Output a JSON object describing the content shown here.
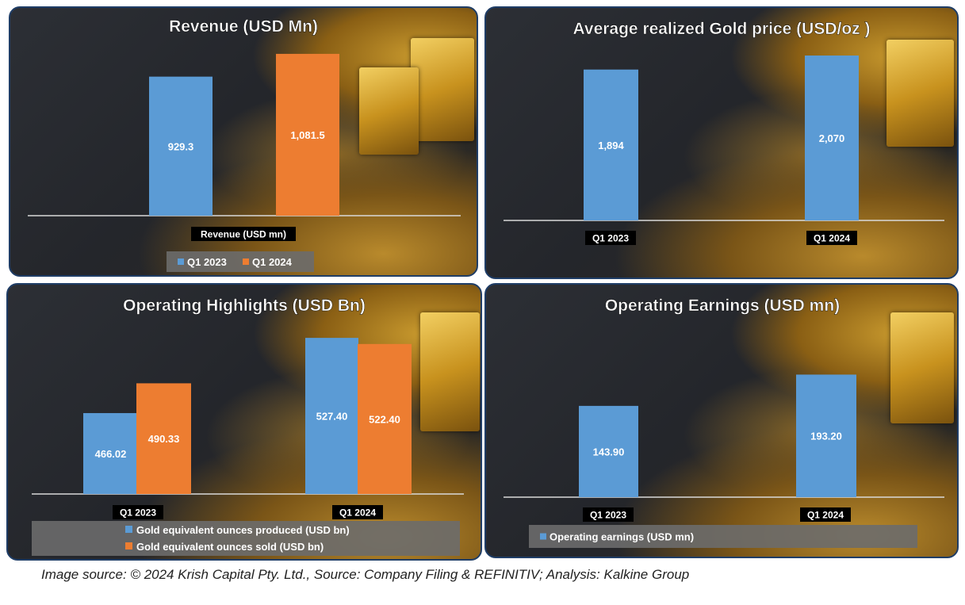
{
  "chart_data": [
    {
      "id": "revenue",
      "type": "bar",
      "title": "Revenue (USD Mn)",
      "categories": [
        "Revenue (USD mn)"
      ],
      "series": [
        {
          "name": "Q1 2023",
          "values": [
            929.3
          ],
          "labels": [
            "929.3"
          ],
          "color": "#5b9bd5"
        },
        {
          "name": "Q1 2024",
          "values": [
            1081.5
          ],
          "labels": [
            "1,081.5"
          ],
          "color": "#ed7d31"
        }
      ],
      "ylim": [
        0,
        1150
      ]
    },
    {
      "id": "gold-price",
      "type": "bar",
      "title": "Average realized Gold price (USD/oz )",
      "categories": [
        "Q1 2023",
        "Q1 2024"
      ],
      "series": [
        {
          "name": "Average realized gold price",
          "values": [
            1894,
            2070
          ],
          "labels": [
            "1,894",
            "2,070"
          ],
          "color": "#5b9bd5"
        }
      ],
      "ylim": [
        0,
        2150
      ]
    },
    {
      "id": "operating-highlights",
      "type": "bar",
      "title": "Operating Highlights (USD Bn)",
      "categories": [
        "Q1 2023",
        "Q1 2024"
      ],
      "series": [
        {
          "name": "Gold equivalent ounces produced (USD bn)",
          "values": [
            466.02,
            527.4
          ],
          "labels": [
            "466.02",
            "527.40"
          ],
          "color": "#5b9bd5"
        },
        {
          "name": "Gold equivalent ounces sold (USD bn)",
          "values": [
            490.33,
            522.4
          ],
          "labels": [
            "490.33",
            "522.40"
          ],
          "color": "#ed7d31"
        }
      ],
      "ylim": [
        400,
        532
      ]
    },
    {
      "id": "operating-earnings",
      "type": "bar",
      "title": "Operating Earnings (USD mn)",
      "categories": [
        "Q1 2023",
        "Q1 2024"
      ],
      "series": [
        {
          "name": "Operating earnings (USD mn)",
          "values": [
            143.9,
            193.2
          ],
          "labels": [
            "143.90",
            "193.20"
          ],
          "color": "#5b9bd5"
        }
      ],
      "ylim": [
        0,
        210
      ]
    }
  ],
  "footer": {
    "text": "Image source: © 2024 Krish Capital Pty. Ltd., Source: Company Filing & REFINITIV; Analysis: Kalkine Group"
  }
}
